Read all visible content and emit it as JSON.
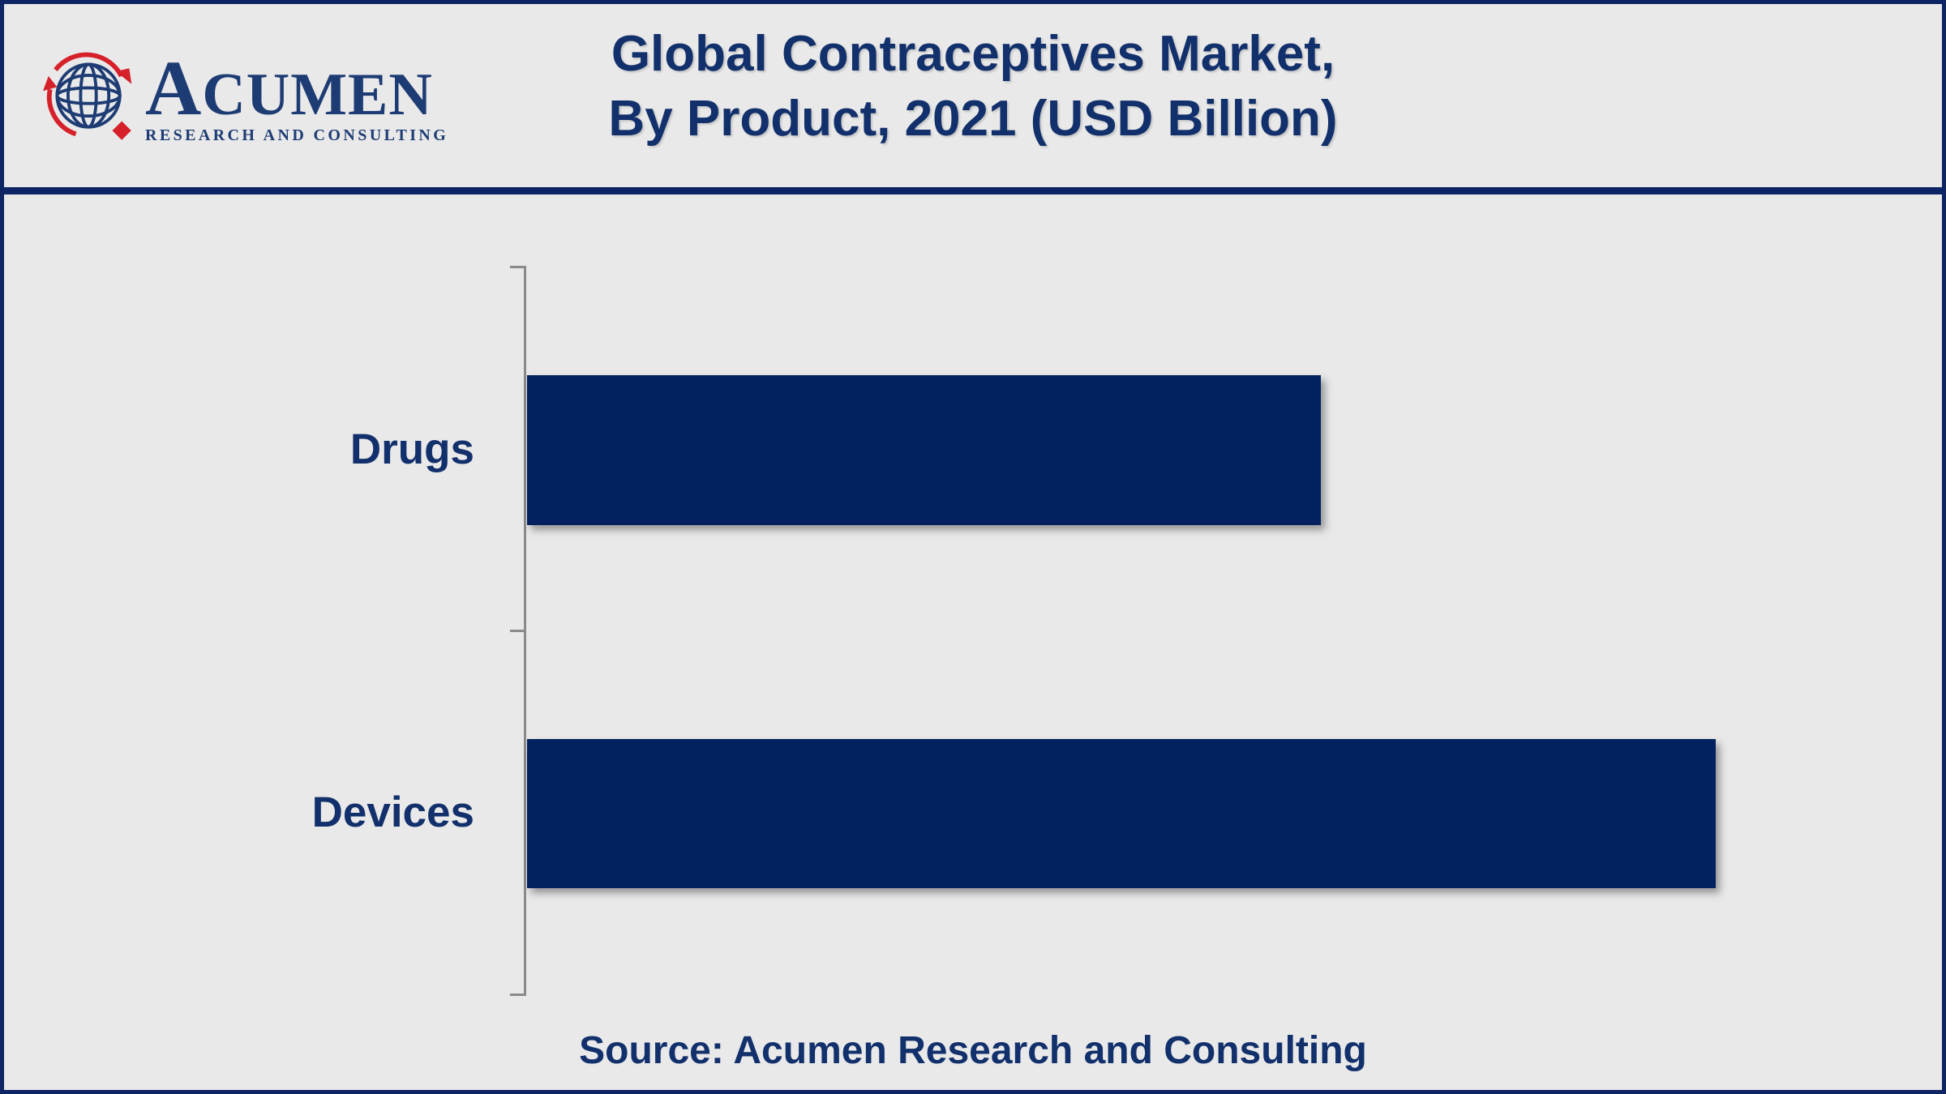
{
  "header": {
    "title_line1": "Global Contraceptives Market,",
    "title_line2": "By Product, 2021 (USD Billion)"
  },
  "logo": {
    "wordmark": "ACUMEN",
    "subtitle": "RESEARCH AND CONSULTING"
  },
  "source_line": "Source: Acumen Research and Consulting",
  "colors": {
    "frame_navy": "#0d2564",
    "title_navy": "#12306b",
    "bar_navy": "#03215f",
    "logo_blue": "#1e3c74",
    "logo_red": "#d6202a",
    "axis_gray": "#8a8a8a",
    "background": "#e9e9e9"
  },
  "chart_data": {
    "type": "bar",
    "orientation": "horizontal",
    "title": "Global Contraceptives Market, By Product, 2021 (USD Billion)",
    "unit": "USD Billion",
    "categories": [
      "Drugs",
      "Devices"
    ],
    "values_normalized": [
      0.668,
      1.0
    ],
    "value_axis_labels_visible": false,
    "data_labels_visible": false,
    "gridlines": false,
    "legend": false,
    "bar_color": "#03215f"
  }
}
